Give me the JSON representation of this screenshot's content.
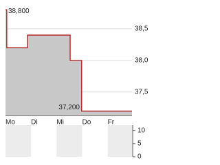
{
  "chart_data": [
    {
      "type": "line",
      "x": [
        0,
        0.05,
        0.05,
        0.86,
        0.86,
        2.53,
        2.53,
        2.98,
        2.98,
        4.95
      ],
      "series": [
        {
          "color": "#b01818",
          "fill": "#c8c8c8",
          "values": [
            38.8,
            38.8,
            38.2,
            38.2,
            38.4,
            38.4,
            38.0,
            38.0,
            37.2,
            37.2
          ]
        }
      ],
      "xlim": [
        0,
        4.95
      ],
      "xticks": [
        {
          "value": 0,
          "label": "Mo"
        },
        {
          "value": 1,
          "label": "Di"
        },
        {
          "value": 2,
          "label": "Mi"
        },
        {
          "value": 3,
          "label": "Do"
        },
        {
          "value": 4,
          "label": "Fr"
        }
      ],
      "ylim": [
        37.13,
        38.9
      ],
      "yticks": [
        {
          "value": 37.5,
          "label": "37,5"
        },
        {
          "value": 38.0,
          "label": "38,0"
        },
        {
          "value": 38.5,
          "label": "38,5"
        }
      ],
      "grid": true,
      "high": {
        "value": 38.8,
        "label": "38,800"
      },
      "low": {
        "value": 37.2,
        "label": "37,200"
      }
    },
    {
      "type": "bar",
      "xlim": [
        0,
        4.95
      ],
      "ylim": [
        0,
        12
      ],
      "yticks": [
        0,
        5,
        10
      ]
    }
  ]
}
